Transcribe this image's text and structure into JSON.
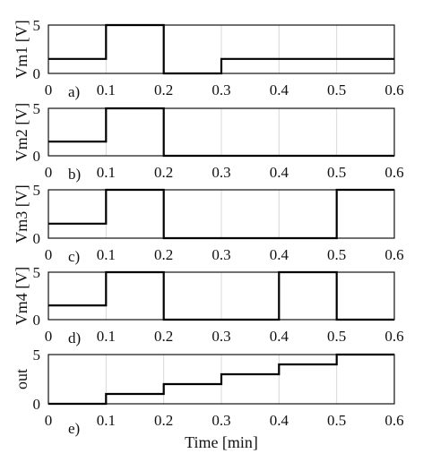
{
  "chart_data": [
    {
      "type": "line",
      "ylabel": "Vm1 [V]",
      "panel_label": "a)",
      "xlim": [
        0,
        0.6
      ],
      "ylim": [
        0,
        5
      ],
      "x_ticks": [
        "0",
        "0.1",
        "0.2",
        "0.3",
        "0.4",
        "0.5",
        "0.6"
      ],
      "y_ticks": [
        "0",
        "5"
      ],
      "grid": true,
      "series": [
        {
          "x": [
            0,
            0.1,
            0.1,
            0.2,
            0.2,
            0.3,
            0.3,
            0.6
          ],
          "y": [
            1.5,
            1.5,
            5,
            5,
            0,
            0,
            1.5,
            1.5
          ]
        }
      ]
    },
    {
      "type": "line",
      "ylabel": "Vm2 [V]",
      "panel_label": "b)",
      "xlim": [
        0,
        0.6
      ],
      "ylim": [
        0,
        5
      ],
      "x_ticks": [
        "0",
        "0.1",
        "0.2",
        "0.3",
        "0.4",
        "0.5",
        "0.6"
      ],
      "y_ticks": [
        "0",
        "5"
      ],
      "grid": true,
      "series": [
        {
          "x": [
            0,
            0.1,
            0.1,
            0.2,
            0.2,
            0.6
          ],
          "y": [
            1.5,
            1.5,
            5,
            5,
            0,
            0
          ]
        }
      ]
    },
    {
      "type": "line",
      "ylabel": "Vm3 [V]",
      "panel_label": "c)",
      "xlim": [
        0,
        0.6
      ],
      "ylim": [
        0,
        5
      ],
      "x_ticks": [
        "0",
        "0.1",
        "0.2",
        "0.3",
        "0.4",
        "0.5",
        "0.6"
      ],
      "y_ticks": [
        "0",
        "5"
      ],
      "grid": true,
      "series": [
        {
          "x": [
            0,
            0.1,
            0.1,
            0.2,
            0.2,
            0.5,
            0.5,
            0.6
          ],
          "y": [
            1.5,
            1.5,
            5,
            5,
            0,
            0,
            5,
            5
          ]
        }
      ]
    },
    {
      "type": "line",
      "ylabel": "Vm4 [V]",
      "panel_label": "d)",
      "xlim": [
        0,
        0.6
      ],
      "ylim": [
        0,
        5
      ],
      "x_ticks": [
        "0",
        "0.1",
        "0.2",
        "0.3",
        "0.4",
        "0.5",
        "0.6"
      ],
      "y_ticks": [
        "0",
        "5"
      ],
      "grid": true,
      "series": [
        {
          "x": [
            0,
            0.1,
            0.1,
            0.2,
            0.2,
            0.4,
            0.4,
            0.5,
            0.5,
            0.6
          ],
          "y": [
            1.5,
            1.5,
            5,
            5,
            0,
            0,
            5,
            5,
            0,
            0
          ]
        }
      ]
    },
    {
      "type": "line",
      "ylabel": "out",
      "xlabel": "Time [min]",
      "panel_label": "e)",
      "xlim": [
        0,
        0.6
      ],
      "ylim": [
        0,
        5
      ],
      "x_ticks": [
        "0",
        "0.1",
        "0.2",
        "0.3",
        "0.4",
        "0.5",
        "0.6"
      ],
      "y_ticks": [
        "0",
        "5"
      ],
      "grid": true,
      "series": [
        {
          "x": [
            0,
            0.1,
            0.1,
            0.2,
            0.2,
            0.3,
            0.3,
            0.4,
            0.4,
            0.5,
            0.5,
            0.6
          ],
          "y": [
            0,
            0,
            1,
            1,
            2,
            2,
            3,
            3,
            4,
            4,
            5,
            5
          ]
        }
      ]
    }
  ]
}
